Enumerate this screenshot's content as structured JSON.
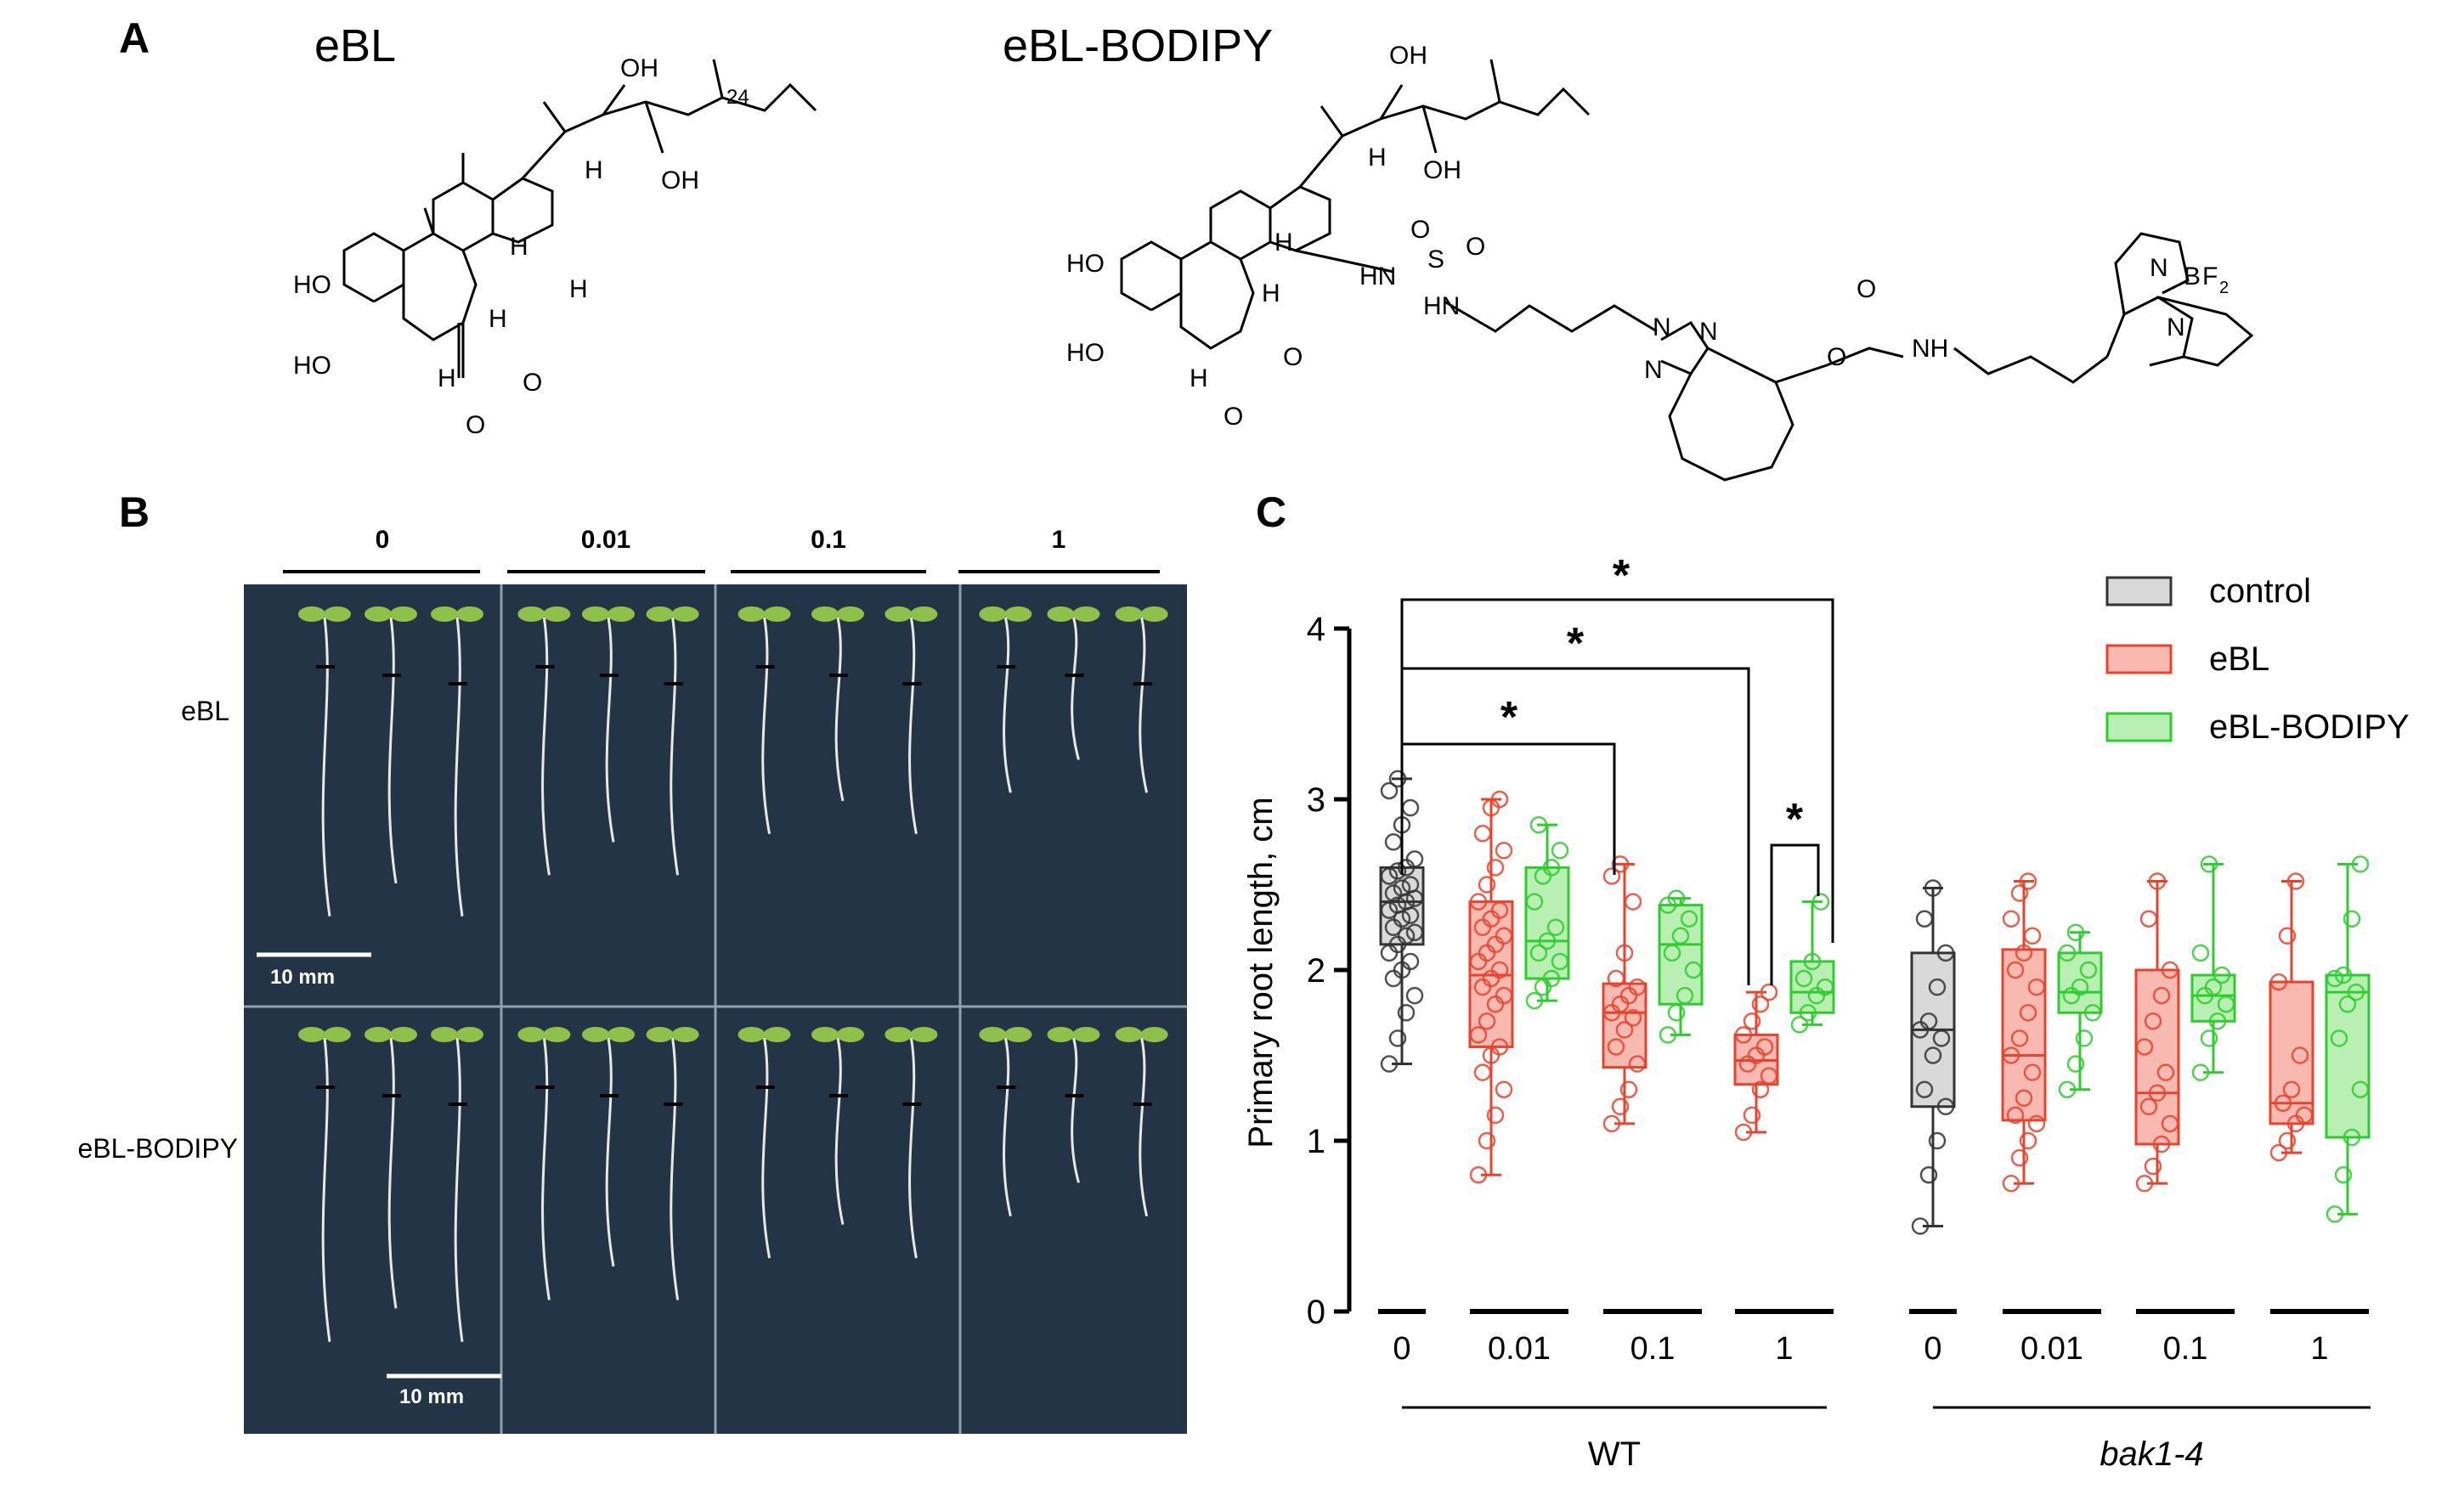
{
  "panels": {
    "A": {
      "letter": "A",
      "compound1": {
        "name": "eBL",
        "labels": [
          "OH",
          "OH",
          "HO",
          "HO",
          "H",
          "H",
          "H",
          "H",
          "H",
          "O",
          "O",
          "24"
        ]
      },
      "compound2": {
        "name": "eBL-BODIPY",
        "labels": [
          "OH",
          "OH",
          "HO",
          "HO",
          "H",
          "H",
          "H",
          "H",
          "O",
          "O",
          "HN",
          "S",
          "O",
          "O",
          "HN",
          "N",
          "N",
          "N",
          "O",
          "O",
          "NH",
          "N",
          "B",
          "F",
          "2",
          "N"
        ]
      }
    },
    "B": {
      "letter": "B",
      "concentrations": [
        "0",
        "0.01",
        "0.1",
        "1"
      ],
      "rows": [
        "eBL",
        "eBL-BODIPY"
      ],
      "scale_bar": "10 mm"
    },
    "C": {
      "letter": "C",
      "stars": [
        "*",
        "*",
        "*",
        "*"
      ]
    }
  },
  "chart_data": {
    "type": "box",
    "ylabel": "Primary root length, cm",
    "ylim": [
      0,
      4
    ],
    "yticks": [
      "0",
      "1",
      "2",
      "3",
      "4"
    ],
    "genotypes": [
      "WT",
      "bak1-4"
    ],
    "concentrations": [
      "0",
      "0.01",
      "0.1",
      "1"
    ],
    "legend": {
      "placement": "top-right",
      "entries": [
        {
          "name": "control",
          "fill": "#d9d9d9",
          "stroke": "#333333"
        },
        {
          "name": "eBL",
          "fill": "#f8b9b0",
          "stroke": "#e8432e"
        },
        {
          "name": "eBL-BODIPY",
          "fill": "#b9efb2",
          "stroke": "#2ecc2e"
        }
      ]
    },
    "boxes": [
      {
        "genotype": "WT",
        "conc": "0",
        "treatment": "control",
        "min": 1.45,
        "q1": 2.15,
        "median": 2.4,
        "q3": 2.6,
        "max": 3.12,
        "points": [
          1.45,
          1.6,
          1.75,
          1.85,
          1.95,
          2.0,
          2.05,
          2.1,
          2.15,
          2.2,
          2.22,
          2.25,
          2.3,
          2.32,
          2.35,
          2.38,
          2.4,
          2.42,
          2.45,
          2.48,
          2.5,
          2.55,
          2.58,
          2.6,
          2.65,
          2.75,
          2.85,
          2.95,
          3.05,
          3.12
        ]
      },
      {
        "genotype": "WT",
        "conc": "0.01",
        "treatment": "eBL",
        "min": 0.8,
        "q1": 1.55,
        "median": 1.97,
        "q3": 2.4,
        "max": 3.0,
        "points": [
          0.8,
          1.0,
          1.15,
          1.3,
          1.4,
          1.5,
          1.55,
          1.62,
          1.7,
          1.8,
          1.85,
          1.9,
          1.95,
          2.0,
          2.05,
          2.1,
          2.15,
          2.2,
          2.25,
          2.3,
          2.35,
          2.4,
          2.5,
          2.6,
          2.7,
          2.8,
          2.95,
          3.0
        ]
      },
      {
        "genotype": "WT",
        "conc": "0.01",
        "treatment": "eBL-BODIPY",
        "min": 1.82,
        "q1": 1.95,
        "median": 2.17,
        "q3": 2.6,
        "max": 2.85,
        "points": [
          1.82,
          1.9,
          1.95,
          2.05,
          2.1,
          2.17,
          2.25,
          2.4,
          2.55,
          2.6,
          2.7,
          2.85
        ]
      },
      {
        "genotype": "WT",
        "conc": "0.1",
        "treatment": "eBL",
        "min": 1.1,
        "q1": 1.43,
        "median": 1.75,
        "q3": 1.92,
        "max": 2.62,
        "points": [
          1.1,
          1.2,
          1.3,
          1.45,
          1.55,
          1.65,
          1.72,
          1.75,
          1.8,
          1.85,
          1.9,
          1.95,
          2.1,
          2.4,
          2.55,
          2.62
        ]
      },
      {
        "genotype": "WT",
        "conc": "0.1",
        "treatment": "eBL-BODIPY",
        "min": 1.62,
        "q1": 1.8,
        "median": 2.15,
        "q3": 2.38,
        "max": 2.42,
        "points": [
          1.62,
          1.75,
          1.85,
          2.0,
          2.1,
          2.2,
          2.3,
          2.38,
          2.42
        ]
      },
      {
        "genotype": "WT",
        "conc": "1",
        "treatment": "eBL",
        "min": 1.05,
        "q1": 1.33,
        "median": 1.47,
        "q3": 1.62,
        "max": 1.87,
        "points": [
          1.05,
          1.15,
          1.3,
          1.38,
          1.45,
          1.5,
          1.55,
          1.62,
          1.7,
          1.8,
          1.87
        ]
      },
      {
        "genotype": "WT",
        "conc": "1",
        "treatment": "eBL-BODIPY",
        "min": 1.68,
        "q1": 1.75,
        "median": 1.87,
        "q3": 2.05,
        "max": 2.4,
        "points": [
          1.68,
          1.75,
          1.85,
          1.9,
          1.95,
          2.05,
          2.4
        ]
      },
      {
        "genotype": "bak1-4",
        "conc": "0",
        "treatment": "control",
        "min": 0.5,
        "q1": 1.2,
        "median": 1.65,
        "q3": 2.1,
        "max": 2.48,
        "points": [
          0.5,
          0.8,
          1.0,
          1.2,
          1.3,
          1.5,
          1.6,
          1.65,
          1.7,
          1.9,
          2.1,
          2.3,
          2.48
        ]
      },
      {
        "genotype": "bak1-4",
        "conc": "0.01",
        "treatment": "eBL",
        "min": 0.75,
        "q1": 1.12,
        "median": 1.5,
        "q3": 2.12,
        "max": 2.52,
        "points": [
          0.75,
          0.9,
          1.0,
          1.1,
          1.15,
          1.25,
          1.4,
          1.5,
          1.6,
          1.75,
          1.9,
          2.0,
          2.1,
          2.2,
          2.3,
          2.45,
          2.52
        ]
      },
      {
        "genotype": "bak1-4",
        "conc": "0.01",
        "treatment": "eBL-BODIPY",
        "min": 1.3,
        "q1": 1.75,
        "median": 1.87,
        "q3": 2.1,
        "max": 2.22,
        "points": [
          1.3,
          1.45,
          1.6,
          1.75,
          1.85,
          1.9,
          2.0,
          2.1,
          2.22
        ]
      },
      {
        "genotype": "bak1-4",
        "conc": "0.1",
        "treatment": "eBL",
        "min": 0.75,
        "q1": 0.98,
        "median": 1.28,
        "q3": 2.0,
        "max": 2.52,
        "points": [
          0.75,
          0.85,
          0.98,
          1.1,
          1.2,
          1.28,
          1.4,
          1.55,
          1.7,
          1.85,
          2.0,
          2.3,
          2.52
        ]
      },
      {
        "genotype": "bak1-4",
        "conc": "0.1",
        "treatment": "eBL-BODIPY",
        "min": 1.4,
        "q1": 1.7,
        "median": 1.85,
        "q3": 1.97,
        "max": 2.62,
        "points": [
          1.4,
          1.6,
          1.7,
          1.8,
          1.85,
          1.9,
          1.97,
          2.1,
          2.62
        ]
      },
      {
        "genotype": "bak1-4",
        "conc": "1",
        "treatment": "eBL",
        "min": 0.93,
        "q1": 1.1,
        "median": 1.22,
        "q3": 1.93,
        "max": 2.52,
        "points": [
          0.93,
          1.0,
          1.1,
          1.15,
          1.22,
          1.3,
          1.5,
          1.93,
          2.2,
          2.52
        ]
      },
      {
        "genotype": "bak1-4",
        "conc": "1",
        "treatment": "eBL-BODIPY",
        "min": 0.57,
        "q1": 1.02,
        "median": 1.87,
        "q3": 1.97,
        "max": 2.62,
        "points": [
          0.57,
          0.8,
          1.02,
          1.3,
          1.6,
          1.8,
          1.87,
          1.95,
          1.97,
          2.3,
          2.62
        ]
      }
    ]
  }
}
